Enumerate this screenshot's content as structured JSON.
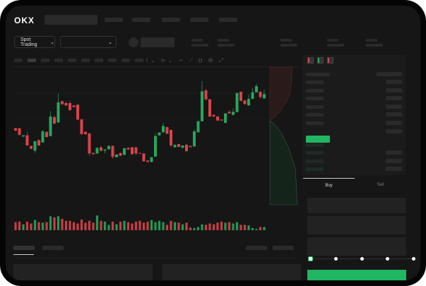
{
  "header": {
    "logo": "OKX",
    "nav_placeholders": 4
  },
  "toolbar": {
    "market_selector": "Spot Trading",
    "chevron": "chevron-down-icon"
  },
  "orderbook": {
    "view_icons": [
      "book-both-icon",
      "book-bids-icon",
      "book-asks-icon"
    ]
  },
  "trade_panel": {
    "tabs": [
      {
        "label": "Buy",
        "active": true
      },
      {
        "label": "Sell",
        "active": false
      }
    ],
    "slider_percent": 0,
    "slider_stops": 5
  },
  "colors": {
    "up": "#26a65b",
    "down": "#d9434a",
    "accent": "#21b661",
    "background": "#161616"
  },
  "chart_data": {
    "type": "candlestick",
    "grid": false,
    "candles": [
      [
        185,
        187,
        173,
        175
      ],
      [
        185,
        187,
        155,
        157
      ],
      [
        150,
        156,
        149,
        155
      ],
      [
        155,
        170,
        110,
        112
      ],
      [
        110,
        111,
        96,
        98
      ],
      [
        90,
        132,
        80,
        130
      ],
      [
        135,
        137,
        110,
        112
      ],
      [
        125,
        178,
        123,
        172
      ],
      [
        170,
        171,
        146,
        148
      ],
      [
        152,
        258,
        150,
        235
      ],
      [
        232,
        240,
        203,
        205
      ],
      [
        210,
        332,
        208,
        295
      ],
      [
        300,
        302,
        285,
        287
      ],
      [
        293,
        296,
        280,
        282
      ],
      [
        292,
        302,
        260,
        262
      ],
      [
        282,
        284,
        274,
        275
      ],
      [
        285,
        288,
        220,
        222
      ],
      [
        223,
        225,
        158,
        160
      ],
      [
        170,
        172,
        158,
        160
      ],
      [
        163,
        165,
        68,
        78
      ],
      [
        80,
        82,
        74,
        75
      ],
      [
        78,
        104,
        76,
        102
      ],
      [
        104,
        110,
        85,
        90
      ],
      [
        90,
        96,
        78,
        95
      ],
      [
        96,
        112,
        95,
        110
      ],
      [
        110,
        112,
        55,
        64
      ],
      [
        62,
        75,
        61,
        74
      ],
      [
        80,
        82,
        67,
        68
      ],
      [
        72,
        102,
        71,
        100
      ],
      [
        102,
        104,
        94,
        95
      ],
      [
        104,
        106,
        73,
        75
      ],
      [
        104,
        106,
        70,
        78
      ],
      [
        80,
        81,
        77,
        78
      ],
      [
        78,
        80,
        43,
        45
      ],
      [
        48,
        49,
        41,
        42
      ],
      [
        42,
        63,
        41,
        62
      ],
      [
        65,
        165,
        63,
        152
      ],
      [
        155,
        168,
        154,
        167
      ],
      [
        168,
        208,
        167,
        195
      ],
      [
        190,
        192,
        160,
        162
      ],
      [
        178,
        180,
        105,
        112
      ],
      [
        105,
        116,
        100,
        115
      ],
      [
        118,
        119,
        105,
        106
      ],
      [
        102,
        113,
        101,
        112
      ],
      [
        115,
        118,
        86,
        88
      ],
      [
        110,
        111,
        104,
        105
      ],
      [
        108,
        180,
        107,
        172
      ],
      [
        168,
        216,
        167,
        215
      ],
      [
        215,
        385,
        214,
        342
      ],
      [
        346,
        352,
        305,
        308
      ],
      [
        308,
        310,
        232,
        235
      ],
      [
        242,
        244,
        234,
        235
      ],
      [
        235,
        236,
        216,
        218
      ],
      [
        222,
        223,
        216,
        218
      ],
      [
        208,
        250,
        207,
        248
      ],
      [
        255,
        262,
        247,
        248
      ],
      [
        242,
        270,
        241,
        255
      ],
      [
        254,
        336,
        253,
        335
      ],
      [
        340,
        342,
        300,
        302
      ],
      [
        303,
        305,
        286,
        288
      ],
      [
        282,
        328,
        281,
        310
      ],
      [
        310,
        355,
        309,
        338
      ],
      [
        338,
        375,
        337,
        364
      ],
      [
        340,
        342,
        310,
        318
      ],
      [
        312,
        348,
        311,
        330
      ]
    ],
    "volumes": [
      30,
      32,
      22,
      32,
      25,
      38,
      30,
      28,
      30,
      52,
      48,
      52,
      42,
      35,
      35,
      30,
      25,
      40,
      28,
      35,
      28,
      55,
      35,
      32,
      20,
      32,
      22,
      32,
      35,
      30,
      25,
      32,
      35,
      28,
      32,
      38,
      30,
      35,
      30,
      20,
      35,
      30,
      28,
      22,
      28,
      10,
      8,
      12,
      22,
      20,
      25,
      22,
      28,
      32,
      28,
      30,
      25,
      30,
      20,
      20,
      18,
      8,
      5,
      12,
      12
    ]
  }
}
